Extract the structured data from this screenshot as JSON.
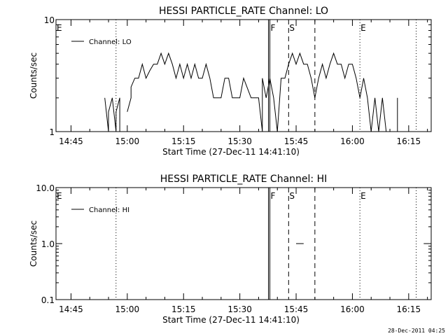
{
  "footer": {
    "stamp": "28-Dec-2011 04:25"
  },
  "style": {
    "line_color": "#000000",
    "background": "#ffffff"
  },
  "chart_data": [
    {
      "type": "line",
      "title": "HESSI PARTICLE_RATE Channel: LO",
      "xlabel": "Start Time (27-Dec-11 14:41:10)",
      "ylabel": "Counts/sec",
      "xlim": [
        "14:41",
        "16:21"
      ],
      "ylim": [
        1,
        10
      ],
      "y_scale": "log",
      "y_ticks": [
        {
          "v": 1,
          "label": "1"
        },
        {
          "v": 10,
          "label": "10"
        }
      ],
      "x_ticks": [
        "14:45",
        "15:00",
        "15:15",
        "15:30",
        "15:45",
        "16:00",
        "16:15"
      ],
      "legend": {
        "position": "top-left",
        "entries": [
          "Channel: LO"
        ]
      },
      "markers": [
        {
          "time": "14:41",
          "label": "E",
          "style": "dotted"
        },
        {
          "time": "14:57",
          "label": "",
          "style": "dotted"
        },
        {
          "time": "15:38",
          "label": "F",
          "style": "solid"
        },
        {
          "time": "15:43",
          "label": "S",
          "style": "dashed"
        },
        {
          "time": "15:50",
          "label": "",
          "style": "dashed"
        },
        {
          "time": "16:02",
          "label": "E",
          "style": "dotted"
        },
        {
          "time": "16:17",
          "label": "",
          "style": "dotted"
        }
      ],
      "series": [
        {
          "name": "Channel: LO",
          "segments": [
            [
              [
                "14:54",
                2
              ],
              [
                "14:55",
                1
              ],
              [
                "14:55",
                1.5
              ],
              [
                "14:56",
                2
              ],
              [
                "14:57",
                1
              ],
              [
                "14:57",
                1.5
              ],
              [
                "14:58",
                2
              ],
              [
                "14:58",
                1
              ]
            ],
            [
              [
                "15:00",
                1.5
              ],
              [
                "15:01",
                2
              ],
              [
                "15:01",
                2.5
              ],
              [
                "15:02",
                3
              ],
              [
                "15:03",
                3
              ],
              [
                "15:04",
                4
              ],
              [
                "15:05",
                3
              ],
              [
                "15:06",
                3.5
              ],
              [
                "15:07",
                4
              ],
              [
                "15:08",
                4
              ],
              [
                "15:09",
                5
              ],
              [
                "15:10",
                4
              ],
              [
                "15:11",
                5
              ],
              [
                "15:12",
                4
              ],
              [
                "15:13",
                3
              ],
              [
                "15:14",
                4
              ],
              [
                "15:15",
                3
              ],
              [
                "15:16",
                4
              ],
              [
                "15:17",
                3
              ],
              [
                "15:18",
                4
              ],
              [
                "15:19",
                3
              ],
              [
                "15:20",
                3
              ],
              [
                "15:21",
                4
              ],
              [
                "15:22",
                3
              ],
              [
                "15:23",
                2
              ],
              [
                "15:25",
                2
              ],
              [
                "15:26",
                3
              ],
              [
                "15:27",
                3
              ],
              [
                "15:28",
                2
              ],
              [
                "15:30",
                2
              ],
              [
                "15:31",
                3
              ],
              [
                "15:33",
                2
              ],
              [
                "15:35",
                2
              ],
              [
                "15:36",
                1
              ],
              [
                "15:36",
                3
              ],
              [
                "15:37",
                2
              ],
              [
                "15:38",
                3
              ],
              [
                "15:39",
                2
              ],
              [
                "15:40",
                1
              ],
              [
                "15:41",
                3
              ],
              [
                "15:42",
                3
              ],
              [
                "15:43",
                4
              ],
              [
                "15:44",
                5
              ],
              [
                "15:45",
                4
              ],
              [
                "15:46",
                5
              ],
              [
                "15:47",
                4
              ],
              [
                "15:48",
                4
              ],
              [
                "15:49",
                3
              ],
              [
                "15:50",
                2
              ],
              [
                "15:51",
                3
              ],
              [
                "15:52",
                4
              ],
              [
                "15:53",
                3
              ],
              [
                "15:54",
                4
              ],
              [
                "15:55",
                5
              ],
              [
                "15:56",
                4
              ],
              [
                "15:57",
                4
              ],
              [
                "15:58",
                3
              ],
              [
                "15:59",
                4
              ],
              [
                "16:00",
                4
              ],
              [
                "16:01",
                3
              ],
              [
                "16:02",
                2
              ],
              [
                "16:03",
                3
              ],
              [
                "16:04",
                2
              ],
              [
                "16:05",
                1
              ],
              [
                "16:06",
                2
              ],
              [
                "16:07",
                1
              ],
              [
                "16:08",
                2
              ],
              [
                "16:09",
                1
              ],
              [
                "16:10",
                1
              ],
              [
                "16:11",
                1
              ]
            ],
            [
              [
                "16:12",
                2
              ],
              [
                "16:12",
                1
              ]
            ]
          ]
        }
      ]
    },
    {
      "type": "line",
      "title": "HESSI PARTICLE_RATE Channel: HI",
      "xlabel": "Start Time (27-Dec-11 14:41:10)",
      "ylabel": "Counts/sec",
      "xlim": [
        "14:41",
        "16:21"
      ],
      "ylim": [
        0.1,
        10
      ],
      "y_scale": "log",
      "y_ticks": [
        {
          "v": 0.1,
          "label": "0.1"
        },
        {
          "v": 1,
          "label": "1.0"
        },
        {
          "v": 10,
          "label": "10.0"
        }
      ],
      "x_ticks": [
        "14:45",
        "15:00",
        "15:15",
        "15:30",
        "15:45",
        "16:00",
        "16:15"
      ],
      "legend": {
        "position": "top-left",
        "entries": [
          "Channel: HI"
        ]
      },
      "markers": [
        {
          "time": "14:41",
          "label": "E",
          "style": "dotted"
        },
        {
          "time": "14:57",
          "label": "",
          "style": "dotted"
        },
        {
          "time": "15:38",
          "label": "F",
          "style": "solid"
        },
        {
          "time": "15:43",
          "label": "S",
          "style": "dashed"
        },
        {
          "time": "15:50",
          "label": "",
          "style": "dashed"
        },
        {
          "time": "16:02",
          "label": "E",
          "style": "dotted"
        },
        {
          "time": "16:17",
          "label": "",
          "style": "dotted"
        }
      ],
      "series": [
        {
          "name": "Channel: HI",
          "segments": [
            [
              [
                "15:45",
                1
              ],
              [
                "15:47",
                1
              ]
            ],
            [
              [
                "16:19",
                1
              ],
              [
                "16:20",
                1
              ]
            ]
          ]
        }
      ]
    }
  ]
}
